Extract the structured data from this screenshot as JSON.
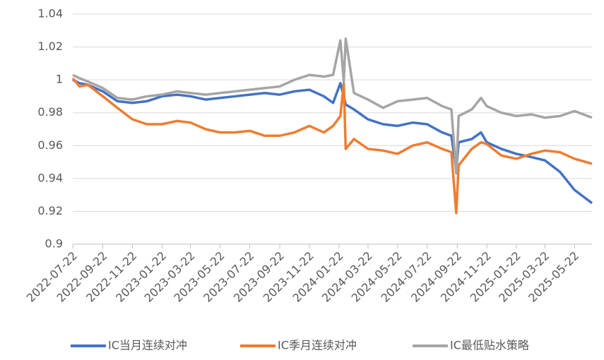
{
  "chart_data": {
    "type": "line",
    "x": [
      "2022-07-22",
      "2022-08-05",
      "2022-08-22",
      "2022-09-22",
      "2022-10-22",
      "2022-11-22",
      "2022-12-22",
      "2023-01-22",
      "2023-02-22",
      "2023-03-22",
      "2023-04-22",
      "2023-05-22",
      "2023-06-22",
      "2023-07-22",
      "2023-08-22",
      "2023-09-22",
      "2023-10-22",
      "2023-11-22",
      "2023-12-22",
      "2024-01-10",
      "2024-01-25",
      "2024-02-01",
      "2024-02-05",
      "2024-02-22",
      "2024-03-22",
      "2024-04-22",
      "2024-05-22",
      "2024-06-22",
      "2024-07-22",
      "2024-08-22",
      "2024-09-10",
      "2024-09-20",
      "2024-09-25",
      "2024-10-22",
      "2024-11-10",
      "2024-11-22",
      "2024-12-22",
      "2025-01-22",
      "2025-02-22",
      "2025-03-22",
      "2025-04-22",
      "2025-05-22",
      "2025-06-27"
    ],
    "series": [
      {
        "name": "IC当月连续对冲",
        "color": "#4472c4",
        "values": [
          1.0,
          0.998,
          0.997,
          0.993,
          0.987,
          0.986,
          0.987,
          0.99,
          0.991,
          0.99,
          0.988,
          0.989,
          0.99,
          0.991,
          0.992,
          0.991,
          0.993,
          0.994,
          0.99,
          0.986,
          0.998,
          0.99,
          0.985,
          0.982,
          0.976,
          0.973,
          0.972,
          0.974,
          0.973,
          0.968,
          0.966,
          0.945,
          0.962,
          0.964,
          0.968,
          0.962,
          0.958,
          0.955,
          0.953,
          0.951,
          0.944,
          0.933,
          0.925
        ]
      },
      {
        "name": "IC季月连续对冲",
        "color": "#ed7d31",
        "values": [
          1.001,
          0.996,
          0.997,
          0.99,
          0.983,
          0.976,
          0.973,
          0.973,
          0.975,
          0.974,
          0.97,
          0.968,
          0.968,
          0.969,
          0.966,
          0.966,
          0.968,
          0.972,
          0.968,
          0.972,
          0.978,
          0.998,
          0.958,
          0.964,
          0.958,
          0.957,
          0.955,
          0.96,
          0.962,
          0.958,
          0.956,
          0.919,
          0.948,
          0.958,
          0.962,
          0.961,
          0.954,
          0.952,
          0.955,
          0.957,
          0.956,
          0.952,
          0.949
        ]
      },
      {
        "name": "IC最低贴水策略",
        "color": "#a5a5a5",
        "values": [
          1.003,
          1.001,
          0.999,
          0.995,
          0.989,
          0.988,
          0.99,
          0.991,
          0.993,
          0.992,
          0.991,
          0.992,
          0.993,
          0.994,
          0.995,
          0.996,
          1.0,
          1.003,
          1.002,
          1.003,
          1.024,
          0.999,
          1.025,
          0.992,
          0.988,
          0.983,
          0.987,
          0.988,
          0.989,
          0.984,
          0.982,
          0.943,
          0.978,
          0.982,
          0.989,
          0.984,
          0.98,
          0.978,
          0.979,
          0.977,
          0.978,
          0.981,
          0.977
        ]
      }
    ],
    "xlim": [
      "2022-07-22",
      "2025-06-27"
    ],
    "xticks": [
      "2022-07-22",
      "2022-09-22",
      "2022-11-22",
      "2023-01-22",
      "2023-03-22",
      "2023-05-22",
      "2023-07-22",
      "2023-09-22",
      "2023-11-22",
      "2024-01-22",
      "2024-03-22",
      "2024-05-22",
      "2024-07-22",
      "2024-09-22",
      "2024-11-22",
      "2025-01-22",
      "2025-03-22",
      "2025-05-22"
    ],
    "ylim": [
      0.9,
      1.04
    ],
    "yticks": [
      0.9,
      0.92,
      0.94,
      0.96,
      0.98,
      1,
      1.02,
      1.04
    ],
    "grid": true,
    "legend": "bottom"
  }
}
